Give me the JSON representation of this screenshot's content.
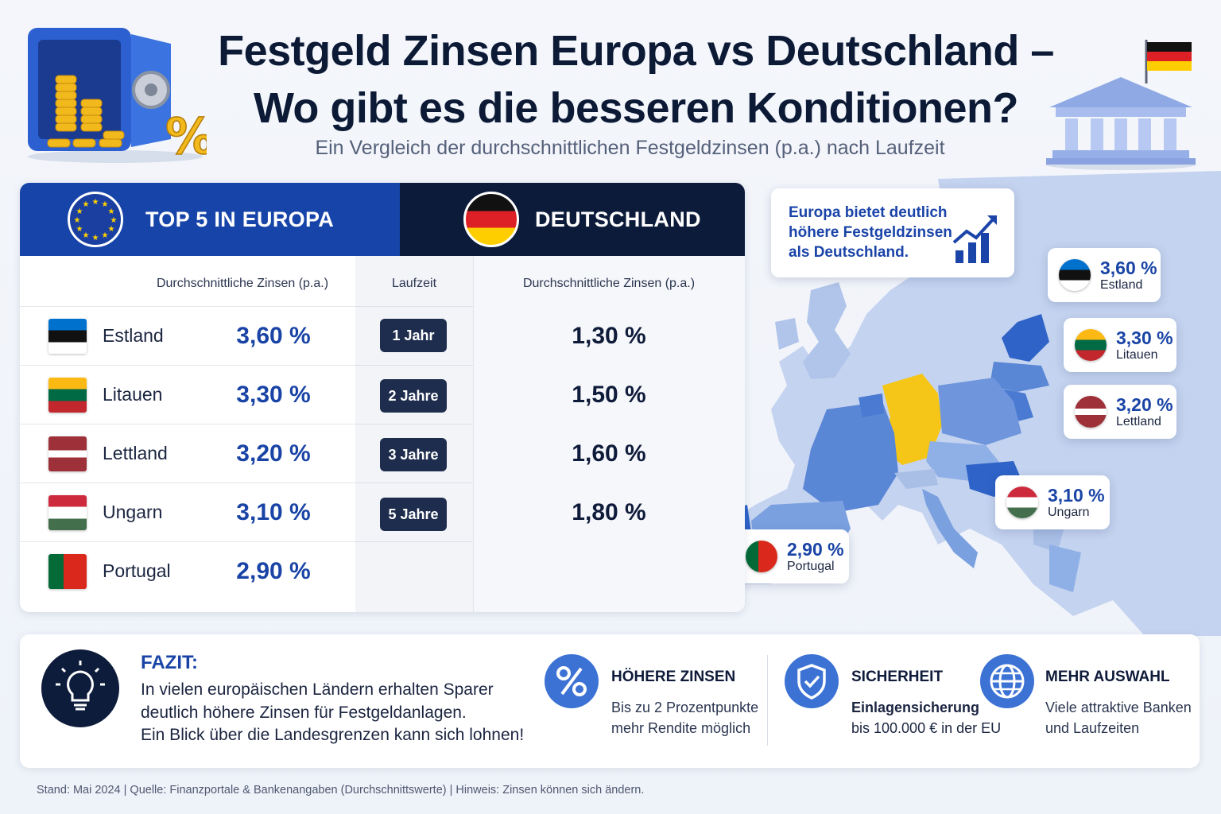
{
  "title_line1": "Festgeld Zinsen Europa vs Deutschland –",
  "title_line2": "Wo gibt es die besseren Konditionen?",
  "subtitle": "Ein Vergleich der durchschnittlichen Festgeldzinsen (p.a.) nach Laufzeit",
  "table": {
    "eu_header": "TOP 5 IN EUROPA",
    "de_header": "DEUTSCHLAND",
    "eu_col_label": "Durchschnittliche Zinsen (p.a.)",
    "lauf_col_label": "Laufzeit",
    "de_col_label": "Durchschnittliche Zinsen (p.a.)",
    "eu_rows": [
      {
        "country": "Estland",
        "rate": "3,60 %",
        "flag": "estonia-flag"
      },
      {
        "country": "Litauen",
        "rate": "3,30 %",
        "flag": "lithuania-flag"
      },
      {
        "country": "Lettland",
        "rate": "3,20 %",
        "flag": "latvia-flag"
      },
      {
        "country": "Ungarn",
        "rate": "3,10 %",
        "flag": "hungary-flag"
      },
      {
        "country": "Portugal",
        "rate": "2,90 %",
        "flag": "portugal-flag"
      }
    ],
    "de_rows": [
      {
        "term": "1 Jahr",
        "rate": "1,30 %"
      },
      {
        "term": "2 Jahre",
        "rate": "1,50 %"
      },
      {
        "term": "3 Jahre",
        "rate": "1,60 %"
      },
      {
        "term": "5 Jahre",
        "rate": "1,80 %"
      }
    ]
  },
  "map": {
    "callout": "Europa bietet deutlich höhere Festgeldzinsen als Deutschland.",
    "pins": [
      {
        "rate": "3,60 %",
        "name": "Estland"
      },
      {
        "rate": "3,30 %",
        "name": "Litauen"
      },
      {
        "rate": "3,20 %",
        "name": "Lettland"
      },
      {
        "rate": "3,10 %",
        "name": "Ungarn"
      },
      {
        "rate": "2,90 %",
        "name": "Portugal"
      }
    ],
    "colors": {
      "germany": "#f5c518",
      "europe_light": "#a9bfe6",
      "europe_mid": "#6f96dd",
      "europe_dark": "#2f63c8"
    }
  },
  "summary": {
    "fazit_heading": "FAZIT:",
    "fazit_line1": "In vielen europäischen Ländern erhalten Sparer",
    "fazit_line2": "deutlich höhere Zinsen für Festgeldanlagen.",
    "fazit_line3": "Ein Blick über die Landesgrenzen kann sich lohnen!",
    "features": [
      {
        "icon": "percent-icon",
        "heading": "HÖHERE ZINSEN",
        "line1": "Bis zu 2 Prozentpunkte",
        "line2": "mehr Rendite möglich"
      },
      {
        "icon": "shield-check-icon",
        "heading": "SICHERHEIT",
        "line1": "Einlagensicherung",
        "line2": "bis 100.000 € in der EU"
      },
      {
        "icon": "globe-icon",
        "heading": "MEHR AUSWAHL",
        "line1": "Viele attraktive Banken",
        "line2": "und Laufzeiten"
      }
    ]
  },
  "footer": "Stand: Mai 2024 | Quelle: Finanzportale & Bankenangaben (Durchschnittswerte) | Hinweis: Zinsen können sich ändern.",
  "accent_color": "#1944a6"
}
